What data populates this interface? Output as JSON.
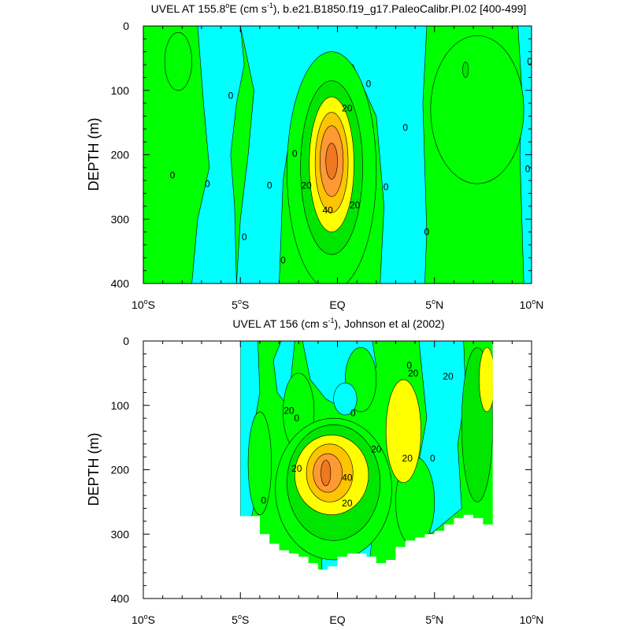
{
  "colors": {
    "c_lt0": "#00ffff",
    "c_0_10": "#00ff00",
    "c_10_20": "#00e600",
    "c_20_30": "#ffff00",
    "c_30_40": "#ffc400",
    "c_40_50": "#ff9933",
    "c_50p": "#f07820",
    "line": "#000000"
  },
  "chart_data": [
    {
      "type": "heatmap",
      "title_main": "UVEL AT 155.8",
      "title_sup1": "o",
      "title_mid": "E (cm s",
      "title_sup2": "-1",
      "title_end": "), b.e21.B1850.f19_g17.PaleoCalibr.PI.02 [400-499]",
      "ylabel": "DEPTH (m)",
      "xlim": [
        -10,
        10
      ],
      "ylim": [
        400,
        0
      ],
      "x_ticks": [
        {
          "value": -10,
          "num": "10",
          "deg": "o",
          "hemi": "S"
        },
        {
          "value": -5,
          "num": "5",
          "deg": "o",
          "hemi": "S"
        },
        {
          "value": 0,
          "num": "EQ",
          "deg": "",
          "hemi": ""
        },
        {
          "value": 5,
          "num": "5",
          "deg": "o",
          "hemi": "N"
        },
        {
          "value": 10,
          "num": "10",
          "deg": "o",
          "hemi": "N"
        }
      ],
      "y_ticks": [
        0,
        100,
        200,
        300,
        400
      ],
      "contour_levels": [
        0,
        10,
        20,
        30,
        40,
        50
      ],
      "features": [
        {
          "band": "c_0_10",
          "cx": -8.2,
          "cy": 55,
          "rx": 0.7,
          "ry": 45
        },
        {
          "band": "c_0_10",
          "cx": 7.2,
          "cy": 130,
          "rx": 2.4,
          "ry": 115
        },
        {
          "band": "c_10_20",
          "cx": 6.6,
          "cy": 68,
          "rx": 0.15,
          "ry": 12
        },
        {
          "band": "c_0_10",
          "cx": -0.3,
          "cy": 225,
          "rx": 2.3,
          "ry": 185
        },
        {
          "band": "c_10_20",
          "cx": -0.3,
          "cy": 220,
          "rx": 1.6,
          "ry": 135
        },
        {
          "band": "c_20_30",
          "cx": -0.3,
          "cy": 215,
          "rx": 1.15,
          "ry": 105
        },
        {
          "band": "c_30_40",
          "cx": -0.3,
          "cy": 212,
          "rx": 0.85,
          "ry": 78
        },
        {
          "band": "c_40_50",
          "cx": -0.3,
          "cy": 210,
          "rx": 0.6,
          "ry": 55
        },
        {
          "band": "c_50p",
          "cx": -0.3,
          "cy": 210,
          "rx": 0.3,
          "ry": 28
        }
      ],
      "contour_labels": [
        {
          "x": 0.5,
          "y": 128,
          "text": "20"
        },
        {
          "x": -1.6,
          "y": 248,
          "text": "20"
        },
        {
          "x": 0.9,
          "y": 278,
          "text": "20"
        },
        {
          "x": -0.5,
          "y": 286,
          "text": "40"
        },
        {
          "x": -8.5,
          "y": 232,
          "text": "0"
        },
        {
          "x": -6.7,
          "y": 245,
          "text": "0"
        },
        {
          "x": -5.5,
          "y": 108,
          "text": "0"
        },
        {
          "x": -4.8,
          "y": 328,
          "text": "0"
        },
        {
          "x": -3.5,
          "y": 248,
          "text": "0"
        },
        {
          "x": -2.8,
          "y": 364,
          "text": "0"
        },
        {
          "x": -2.2,
          "y": 198,
          "text": "0"
        },
        {
          "x": 1.6,
          "y": 90,
          "text": "0"
        },
        {
          "x": 2.5,
          "y": 250,
          "text": "0"
        },
        {
          "x": 3.5,
          "y": 158,
          "text": "0"
        },
        {
          "x": 4.6,
          "y": 320,
          "text": "0"
        },
        {
          "x": 9.9,
          "y": 55,
          "text": "0"
        },
        {
          "x": 9.8,
          "y": 222,
          "text": "0"
        }
      ]
    },
    {
      "type": "heatmap",
      "title_main": "UVEL AT 156 (cm s",
      "title_sup1": "-1",
      "title_end": "), Johnson et al (2002)",
      "ylabel": "DEPTH (m)",
      "xlim": [
        -10,
        10
      ],
      "ylim": [
        400,
        0
      ],
      "x_ticks": [
        {
          "value": -10,
          "num": "10",
          "deg": "o",
          "hemi": "S"
        },
        {
          "value": -5,
          "num": "5",
          "deg": "o",
          "hemi": "S"
        },
        {
          "value": 0,
          "num": "EQ",
          "deg": "",
          "hemi": ""
        },
        {
          "value": 5,
          "num": "5",
          "deg": "o",
          "hemi": "N"
        },
        {
          "value": 10,
          "num": "10",
          "deg": "o",
          "hemi": "N"
        }
      ],
      "y_ticks": [
        0,
        100,
        200,
        300,
        400
      ],
      "contour_levels": [
        0,
        10,
        20,
        30,
        40,
        50
      ],
      "data_extent": {
        "x": [
          -5,
          -4,
          -3.5,
          -3,
          -2.5,
          -2,
          -1.5,
          -1,
          -0.5,
          0,
          0.5,
          1,
          1.5,
          2,
          2.5,
          3,
          3.5,
          4,
          4.5,
          5,
          5.5,
          6,
          6.5,
          7,
          7.5,
          8
        ],
        "bottom": [
          265,
          272,
          300,
          315,
          325,
          330,
          335,
          345,
          355,
          350,
          335,
          330,
          330,
          335,
          345,
          340,
          320,
          310,
          305,
          300,
          295,
          285,
          275,
          270,
          275,
          285
        ]
      },
      "features": [
        {
          "band": "c_0_10",
          "cx": -4.0,
          "cy": 190,
          "rx": 0.6,
          "ry": 80
        },
        {
          "band": "c_0_10",
          "cx": -2.0,
          "cy": 110,
          "rx": 0.8,
          "ry": 60
        },
        {
          "band": "c_0_10",
          "cx": 4.0,
          "cy": 250,
          "rx": 1.0,
          "ry": 70
        },
        {
          "band": "c_0_10",
          "cx": 1.2,
          "cy": 60,
          "rx": 0.8,
          "ry": 50
        },
        {
          "band": "c_0_10",
          "cx": -0.2,
          "cy": 230,
          "rx": 3.0,
          "ry": 110
        },
        {
          "band": "c_10_20",
          "cx": -0.2,
          "cy": 220,
          "rx": 2.4,
          "ry": 90
        },
        {
          "band": "c_10_20",
          "cx": 7.2,
          "cy": 130,
          "rx": 0.8,
          "ry": 120
        },
        {
          "band": "c_20_30",
          "cx": -0.3,
          "cy": 208,
          "rx": 1.9,
          "ry": 62
        },
        {
          "band": "c_20_30",
          "cx": 3.4,
          "cy": 140,
          "rx": 0.9,
          "ry": 80
        },
        {
          "band": "c_20_30",
          "cx": 7.7,
          "cy": 60,
          "rx": 0.4,
          "ry": 50
        },
        {
          "band": "c_30_40",
          "cx": -0.4,
          "cy": 205,
          "rx": 1.2,
          "ry": 45
        },
        {
          "band": "c_40_50",
          "cx": -0.5,
          "cy": 205,
          "rx": 0.75,
          "ry": 30
        },
        {
          "band": "c_50p",
          "cx": -0.6,
          "cy": 205,
          "rx": 0.25,
          "ry": 20
        },
        {
          "band": "c_lt0",
          "cx": 0.4,
          "cy": 90,
          "rx": 0.6,
          "ry": 25
        }
      ],
      "contour_labels": [
        {
          "x": -2.5,
          "y": 108,
          "text": "20"
        },
        {
          "x": 0.8,
          "y": 112,
          "text": "0"
        },
        {
          "x": 2.0,
          "y": 168,
          "text": "20"
        },
        {
          "x": 3.9,
          "y": 50,
          "text": "20"
        },
        {
          "x": 5.7,
          "y": 55,
          "text": "20"
        },
        {
          "x": 3.6,
          "y": 182,
          "text": "20"
        },
        {
          "x": -2.1,
          "y": 198,
          "text": "20"
        },
        {
          "x": 0.5,
          "y": 212,
          "text": "40"
        },
        {
          "x": 0.5,
          "y": 252,
          "text": "20"
        },
        {
          "x": -2.1,
          "y": 120,
          "text": "0"
        },
        {
          "x": -3.8,
          "y": 248,
          "text": "0"
        },
        {
          "x": 4.9,
          "y": 182,
          "text": "0"
        },
        {
          "x": 3.7,
          "y": 38,
          "text": "0"
        }
      ]
    }
  ]
}
